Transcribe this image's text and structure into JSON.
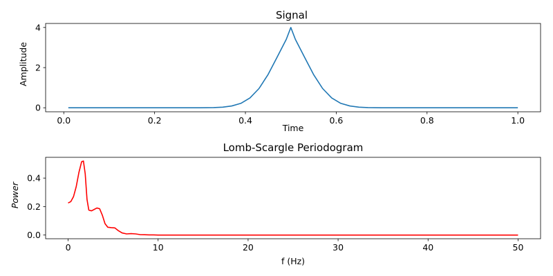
{
  "chart_data": [
    {
      "type": "line",
      "title": "Signal",
      "xlabel": "Time",
      "ylabel": "Amplitude",
      "xlim": [
        -0.04,
        1.05
      ],
      "ylim": [
        -0.2,
        4.2
      ],
      "xticks": [
        0.0,
        0.2,
        0.4,
        0.6,
        0.8,
        1.0
      ],
      "xtick_labels": [
        "0.0",
        "0.2",
        "0.4",
        "0.6",
        "0.8",
        "1.0"
      ],
      "yticks": [
        0,
        2,
        4
      ],
      "ytick_labels": [
        "0",
        "2",
        "4"
      ],
      "grid": false,
      "series": [
        {
          "color": "#1f77b4",
          "x": [
            0.01,
            0.05,
            0.1,
            0.15,
            0.2,
            0.25,
            0.3,
            0.33,
            0.35,
            0.37,
            0.39,
            0.41,
            0.43,
            0.45,
            0.47,
            0.49,
            0.5,
            0.51,
            0.53,
            0.55,
            0.57,
            0.59,
            0.61,
            0.63,
            0.65,
            0.67,
            0.7,
            0.75,
            0.8,
            0.85,
            0.9,
            0.95,
            1.0
          ],
          "values": [
            0.0,
            0.0,
            0.0,
            0.0,
            0.0,
            0.0,
            0.0,
            0.01,
            0.03,
            0.09,
            0.22,
            0.49,
            0.96,
            1.66,
            2.53,
            3.41,
            4.0,
            3.41,
            2.53,
            1.66,
            0.96,
            0.49,
            0.22,
            0.09,
            0.03,
            0.01,
            0.0,
            0.0,
            0.0,
            0.0,
            0.0,
            0.0,
            0.0
          ]
        }
      ]
    },
    {
      "type": "line",
      "title": "Lomb-Scargle Periodogram",
      "xlabel": "f (Hz)",
      "ylabel": "Power",
      "xlim": [
        -2.5,
        52.5
      ],
      "ylim": [
        -0.026,
        0.546
      ],
      "xticks": [
        0,
        10,
        20,
        30,
        40,
        50
      ],
      "xtick_labels": [
        "0",
        "10",
        "20",
        "30",
        "40",
        "50"
      ],
      "yticks": [
        0.0,
        0.2,
        0.4
      ],
      "ytick_labels": [
        "0.0",
        "0.2",
        "0.4"
      ],
      "grid": false,
      "series": [
        {
          "color": "#ff0000",
          "x": [
            0.0,
            0.3,
            0.6,
            0.9,
            1.2,
            1.5,
            1.7,
            1.9,
            2.1,
            2.3,
            2.6,
            2.9,
            3.2,
            3.5,
            3.8,
            4.1,
            4.4,
            4.8,
            5.2,
            5.6,
            6.0,
            6.5,
            7.0,
            7.5,
            8.0,
            8.5,
            9.0,
            9.5,
            10.0,
            12.0,
            15.0,
            20.0,
            30.0,
            40.0,
            50.0
          ],
          "values": [
            0.225,
            0.235,
            0.27,
            0.34,
            0.44,
            0.515,
            0.52,
            0.43,
            0.25,
            0.175,
            0.17,
            0.18,
            0.19,
            0.185,
            0.14,
            0.08,
            0.055,
            0.052,
            0.05,
            0.03,
            0.015,
            0.008,
            0.01,
            0.008,
            0.003,
            0.002,
            0.001,
            0.001,
            0.0,
            0.0,
            0.0,
            0.0,
            0.0,
            0.0,
            0.0
          ]
        }
      ]
    }
  ]
}
